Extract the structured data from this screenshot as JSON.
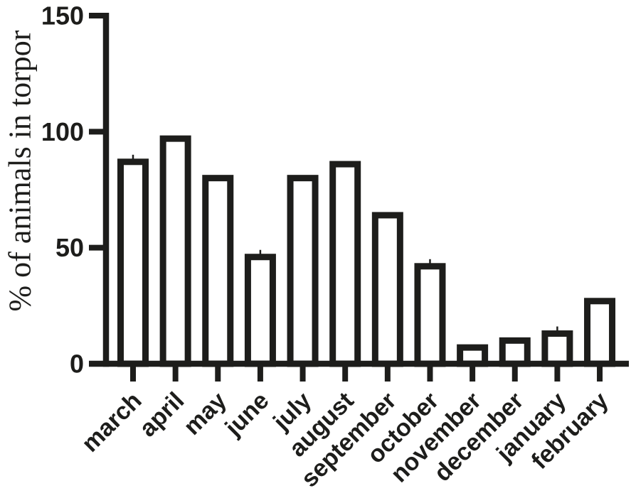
{
  "chart_data": {
    "type": "bar",
    "title": "",
    "xlabel": "",
    "ylabel": "% of animals in torpor",
    "categories": [
      "march",
      "april",
      "may",
      "june",
      "july",
      "august",
      "september",
      "october",
      "november",
      "december",
      "january",
      "february"
    ],
    "values": [
      87,
      97,
      80,
      46,
      80,
      86,
      64,
      42,
      7,
      10,
      13,
      27
    ],
    "ylim": [
      0,
      150
    ],
    "yticks": [
      0,
      50,
      100,
      150
    ],
    "grid": false,
    "legend": null,
    "x_label_rotation_deg": -45,
    "error_tick_categories": [
      "march",
      "june",
      "october",
      "january"
    ],
    "style": {
      "bar_fill": "#ffffff",
      "line_color": "#1d1d1b",
      "background": "#ffffff"
    }
  }
}
